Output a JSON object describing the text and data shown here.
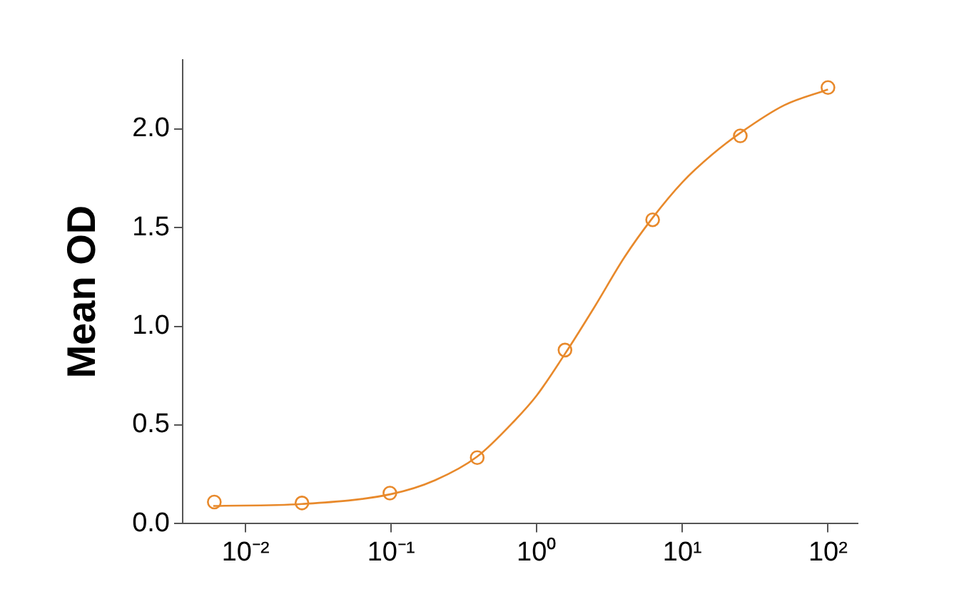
{
  "chart_data": {
    "type": "scatter",
    "ylabel": "Mean OD",
    "log": "x",
    "grid": false,
    "legend": false,
    "xlim": [
      0.0037,
      160
    ],
    "xticks": [
      {
        "value": 0.01,
        "label": "10⁻²"
      },
      {
        "value": 0.1,
        "label": "10⁻¹"
      },
      {
        "value": 1,
        "label": "10⁰"
      },
      {
        "value": 10,
        "label": "10¹"
      },
      {
        "value": 100,
        "label": "10²"
      }
    ],
    "ylim": [
      0,
      2.35
    ],
    "yticks": [
      {
        "value": 0,
        "label": "0.0"
      },
      {
        "value": 0.5,
        "label": "0.5"
      },
      {
        "value": 1,
        "label": "1.0"
      },
      {
        "value": 1.5,
        "label": "1.5"
      },
      {
        "value": 2,
        "label": "2.0"
      }
    ],
    "series": [
      {
        "type": "scatter",
        "marker": "circle",
        "color": "#e8892b",
        "x": [
          0.0061,
          0.0244,
          0.098,
          0.39,
          1.5625,
          6.25,
          25,
          100
        ],
        "values": [
          0.11,
          0.105,
          0.155,
          0.335,
          0.88,
          1.54,
          1.965,
          2.21
        ]
      },
      {
        "type": "line",
        "marker": "none",
        "color": "#e8892b",
        "x": [
          0.006,
          0.0244,
          0.1,
          0.2,
          0.39,
          0.7,
          1,
          1.56,
          2.5,
          4,
          6.25,
          10,
          16,
          25,
          50,
          100
        ],
        "values": [
          0.09,
          0.1,
          0.15,
          0.22,
          0.34,
          0.52,
          0.65,
          0.86,
          1.1,
          1.35,
          1.55,
          1.73,
          1.87,
          1.98,
          2.12,
          2.2
        ]
      }
    ]
  }
}
